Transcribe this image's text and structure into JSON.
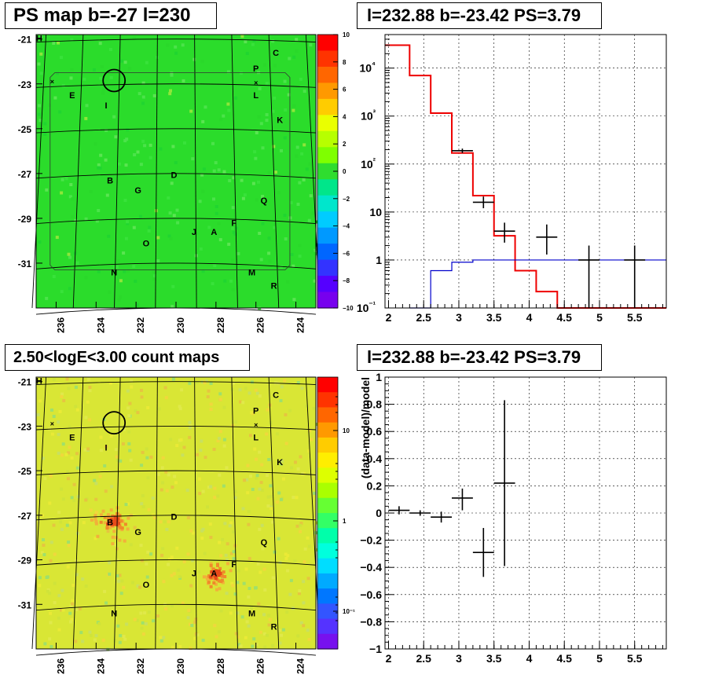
{
  "map1": {
    "title": "PS map b=-27 l=230",
    "colorbar_labels": [
      "10",
      "8",
      "6",
      "4",
      "2",
      "0",
      "−2",
      "−4",
      "−6",
      "−8",
      "−10"
    ],
    "y_ticks": [
      "-21",
      "-23",
      "-25",
      "-27",
      "-29",
      "-31"
    ],
    "x_ticks": [
      "236",
      "234",
      "232",
      "230",
      "228",
      "226",
      "224"
    ]
  },
  "map2": {
    "title": "2.50<logE<3.00 count maps",
    "colorbar_labels": [
      "10",
      "1",
      "10⁻¹"
    ]
  },
  "plot1": {
    "title": "l=232.88 b=-23.42 PS=3.79"
  },
  "plot2": {
    "title": "l=232.88 b=-23.42 PS=3.79"
  },
  "source_labels": [
    {
      "t": "H",
      "ra": 236.85,
      "dec": -20.95
    },
    {
      "t": "C",
      "ra": 225.0,
      "dec": -21.6
    },
    {
      "t": "P",
      "ra": 226.0,
      "dec": -22.3
    },
    {
      "t": "E",
      "ra": 235.2,
      "dec": -23.5
    },
    {
      "t": "I",
      "ra": 233.5,
      "dec": -23.95
    },
    {
      "t": "L",
      "ra": 226.0,
      "dec": -23.5
    },
    {
      "t": "K",
      "ra": 224.8,
      "dec": -24.6
    },
    {
      "t": "D",
      "ra": 230.1,
      "dec": -27.05
    },
    {
      "t": "B",
      "ra": 233.3,
      "dec": -27.3
    },
    {
      "t": "G",
      "ra": 231.9,
      "dec": -27.75
    },
    {
      "t": "Q",
      "ra": 225.6,
      "dec": -28.2
    },
    {
      "t": "F",
      "ra": 227.1,
      "dec": -29.2
    },
    {
      "t": "J",
      "ra": 229.1,
      "dec": -29.6
    },
    {
      "t": "A",
      "ra": 228.1,
      "dec": -29.6
    },
    {
      "t": "O",
      "ra": 231.5,
      "dec": -30.1
    },
    {
      "t": "N",
      "ra": 233.1,
      "dec": -31.4
    },
    {
      "t": "M",
      "ra": 226.2,
      "dec": -31.4
    },
    {
      "t": "R",
      "ra": 225.1,
      "dec": -32.0
    }
  ],
  "colors": {
    "red": "#ee0000",
    "blue": "#0000cc",
    "map1_bg": "#2bdc2b",
    "map2_bg": "#d9e635"
  },
  "chart_data": [
    {
      "type": "heatmap",
      "title": "PS map b=-27 l=230",
      "xlabel": "",
      "ylabel": "",
      "xlim": [
        237,
        223
      ],
      "ylim": [
        -33,
        -20.8
      ],
      "x_ticks": [
        236,
        234,
        232,
        230,
        228,
        226,
        224
      ],
      "y_ticks": [
        -21,
        -23,
        -25,
        -27,
        -29,
        -31
      ],
      "z_range": [
        -10,
        10
      ],
      "colorbar_ticks": [
        10,
        8,
        6,
        4,
        2,
        0,
        -2,
        -4,
        -6,
        -8,
        -10
      ]
    },
    {
      "type": "line",
      "title": "l=232.88 b=-23.42 PS=3.79",
      "xlim": [
        1.95,
        5.95
      ],
      "ylim": [
        0.1,
        50000
      ],
      "log_y": true,
      "x_ticks": [
        2,
        2.5,
        3,
        3.5,
        4,
        4.5,
        5,
        5.5
      ],
      "y_ticks": [
        0.1,
        1,
        10,
        100,
        1000,
        10000
      ],
      "y_tick_labels": [
        "10⁻¹",
        "1",
        "10",
        "10²",
        "10³",
        "10⁴"
      ],
      "grid": true,
      "series": [
        {
          "style": "step",
          "color": "#ee0000",
          "edges": [
            1.95,
            2.3,
            2.6,
            2.9,
            3.2,
            3.5,
            3.8,
            4.1,
            4.4,
            5.95
          ],
          "values": [
            30000,
            7000,
            1150,
            170,
            22,
            3.2,
            0.6,
            0.22,
            0.1
          ]
        },
        {
          "style": "step",
          "color": "#0000cc",
          "edges": [
            2.3,
            2.6,
            2.9,
            3.2,
            5.95
          ],
          "values": [
            0.1,
            0.6,
            0.9,
            1.0
          ]
        },
        {
          "style": "errorbar",
          "color": "#000000",
          "x": [
            3.05,
            3.35,
            3.65,
            4.25,
            4.85,
            5.5
          ],
          "xerr": [
            0.15,
            0.15,
            0.15,
            0.15,
            0.15,
            0.15
          ],
          "y": [
            190,
            16,
            4,
            3,
            1,
            1
          ],
          "ylo": [
            170,
            12,
            2.3,
            1.3,
            0.1,
            0.1
          ],
          "yhi": [
            210,
            21,
            6,
            5.5,
            2,
            2
          ]
        }
      ]
    },
    {
      "type": "heatmap",
      "title": "2.50<logE<3.00 count maps",
      "xlim": [
        237,
        223
      ],
      "ylim": [
        -33,
        -20.8
      ],
      "x_ticks": [
        236,
        234,
        232,
        230,
        228,
        226,
        224
      ],
      "y_ticks": [
        -21,
        -23,
        -25,
        -27,
        -29,
        -31
      ],
      "z_scale": "log",
      "colorbar_ticks": [
        10,
        1,
        0.1
      ]
    },
    {
      "type": "scatter",
      "title": "l=232.88 b=-23.42 PS=3.79",
      "ylabel": "(data-model)/model",
      "xlim": [
        1.95,
        5.95
      ],
      "ylim": [
        -1,
        1
      ],
      "x_ticks": [
        2,
        2.5,
        3,
        3.5,
        4,
        4.5,
        5,
        5.5
      ],
      "y_ticks": [
        -1,
        -0.8,
        -0.6,
        -0.4,
        -0.2,
        0,
        0.2,
        0.4,
        0.6,
        0.8,
        1
      ],
      "grid": true,
      "series": [
        {
          "style": "errorbar",
          "color": "#000000",
          "x": [
            2.15,
            2.45,
            2.75,
            3.05,
            3.35,
            3.65
          ],
          "xerr": [
            0.15,
            0.15,
            0.15,
            0.15,
            0.15,
            0.15
          ],
          "y": [
            0.02,
            0.0,
            -0.03,
            0.11,
            -0.29,
            0.22
          ],
          "ylo": [
            -0.01,
            -0.02,
            -0.07,
            0.02,
            -0.47,
            -0.39
          ],
          "yhi": [
            0.05,
            0.02,
            0.01,
            0.18,
            -0.11,
            0.83
          ]
        }
      ]
    }
  ]
}
